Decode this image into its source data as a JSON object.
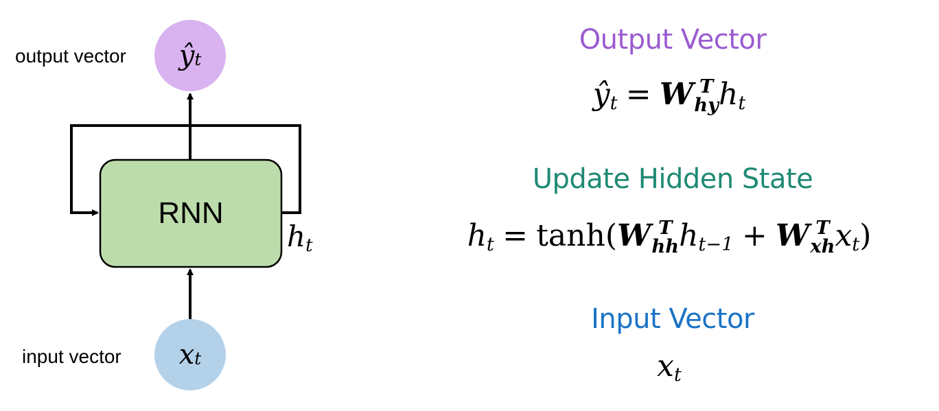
{
  "diagram": {
    "output_label": "output vector",
    "input_label": "input vector",
    "rnn_label": "RNN",
    "output_symbol": "ŷ",
    "input_symbol": "x",
    "hidden_symbol": "h",
    "subscript_t": "t",
    "colors": {
      "output_circle": "#d9b3f0",
      "input_circle": "#b4d1ea",
      "rnn_box": "#bcdcab",
      "stroke": "#000000"
    }
  },
  "equations": {
    "output_heading": "Output Vector",
    "hidden_heading": "Update Hidden State",
    "input_heading": "Input Vector",
    "heading_colors": {
      "output": "#9b5bd1",
      "hidden": "#1f8a74",
      "input": "#1a73c6"
    },
    "output_eq": {
      "lhs": "ŷ",
      "lhs_sub": "t",
      "equals": "=",
      "W": "W",
      "W_sup": "T",
      "W_sub": "hy",
      "h": "h",
      "h_sub": "t"
    },
    "hidden_eq": {
      "lhs": "h",
      "lhs_sub": "t",
      "equals": "=",
      "func": "tanh(",
      "W1": "W",
      "W1_sup": "T",
      "W1_sub": "hh",
      "h": "h",
      "h_sub": "t−1",
      "plus": "+",
      "W2": "W",
      "W2_sup": "T",
      "W2_sub": "xh",
      "x": "x",
      "x_sub": "t",
      "close": ")"
    },
    "input_eq": {
      "x": "x",
      "x_sub": "t"
    }
  }
}
